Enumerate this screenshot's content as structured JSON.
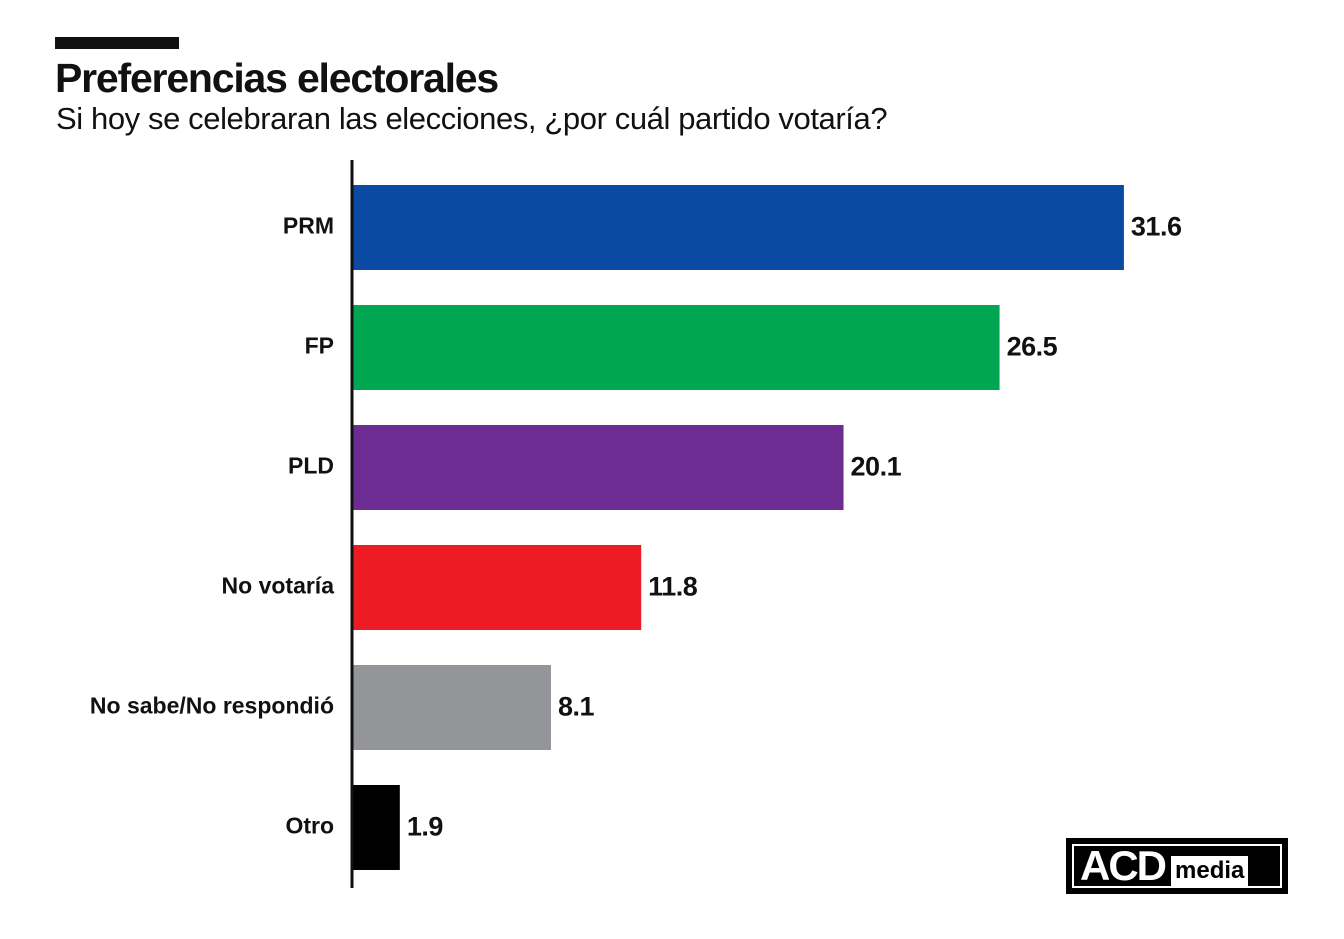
{
  "header": {
    "title": "Preferencias electorales",
    "subtitle": "Si hoy se celebraran las elecciones, ¿por cuál partido votaría?"
  },
  "logo": {
    "main": "ACD",
    "sub": "media"
  },
  "chart_data": {
    "type": "bar",
    "orientation": "horizontal",
    "title": "Preferencias electorales",
    "subtitle": "Si hoy se celebraran las elecciones, ¿por cuál partido votaría?",
    "categories": [
      "PRM",
      "FP",
      "PLD",
      "No votaría",
      "No sabe/No respondió",
      "Otro"
    ],
    "values": [
      31.6,
      26.5,
      20.1,
      11.8,
      8.1,
      1.9
    ],
    "value_labels": [
      "31.6",
      "26.5",
      "20.1",
      "11.8",
      "8.1",
      "1.9"
    ],
    "colors": [
      "#0b4aa2",
      "#00a651",
      "#6d2c91",
      "#ed1c24",
      "#939598",
      "#000000"
    ],
    "xlabel": "",
    "ylabel": "",
    "xlim": [
      0,
      35
    ],
    "grid": false,
    "legend": "none"
  }
}
